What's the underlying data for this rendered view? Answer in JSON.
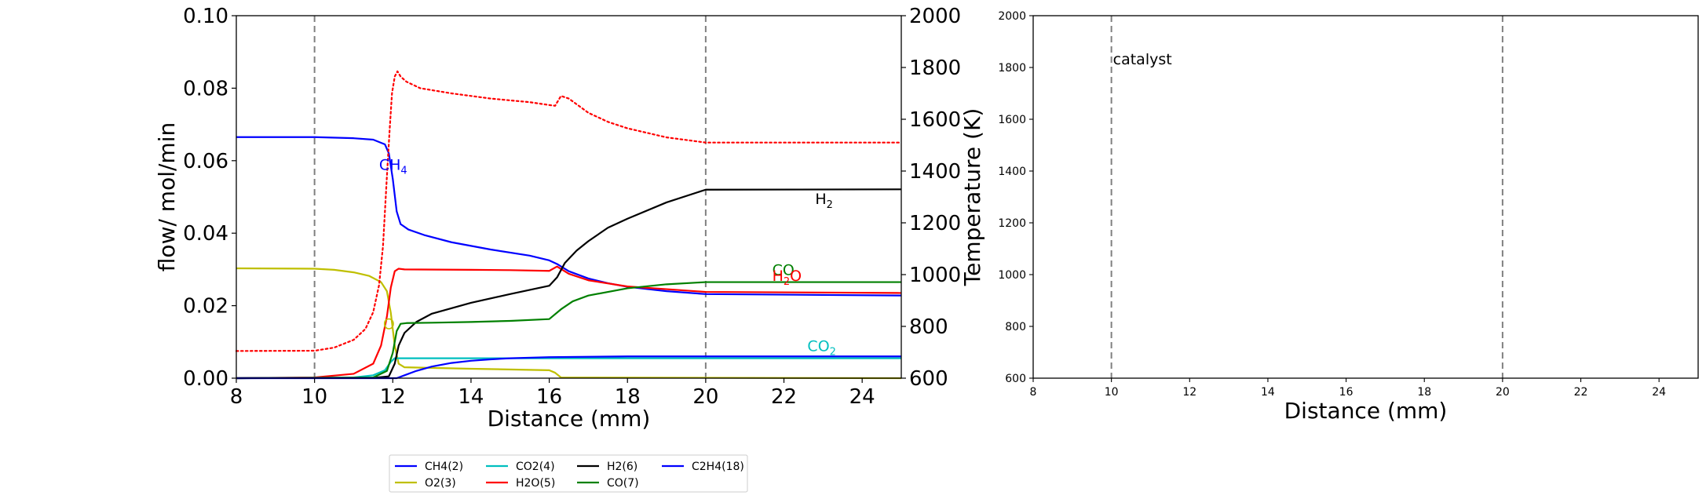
{
  "chart_data": [
    {
      "type": "line",
      "xlabel": "Distance (mm)",
      "ylabel": "flow/ mol/min",
      "ylabel_right": "Temperature (K)",
      "xlim": [
        8,
        25
      ],
      "ylim": [
        0,
        0.1
      ],
      "ylim_right": [
        600,
        2000
      ],
      "xticks": [
        "8",
        "10",
        "12",
        "14",
        "16",
        "18",
        "20",
        "22",
        "24"
      ],
      "yticks": [
        "0.00",
        "0.02",
        "0.04",
        "0.06",
        "0.08",
        "0.10"
      ],
      "yticks_right": [
        "600",
        "800",
        "1000",
        "1200",
        "1400",
        "1600",
        "1800",
        "2000"
      ],
      "vlines": [
        10,
        20
      ],
      "grid": false,
      "legend_placement": "below",
      "series": [
        {
          "name": "CH4(2)",
          "color": "#0000ff",
          "x": [
            8,
            10,
            11,
            11.5,
            11.8,
            11.9,
            12.0,
            12.1,
            12.2,
            12.4,
            12.8,
            13.5,
            14.5,
            15.5,
            16.0,
            16.2,
            16.5,
            17,
            17.5,
            18,
            19,
            20,
            25
          ],
          "y": [
            0.0665,
            0.0665,
            0.0662,
            0.0658,
            0.0645,
            0.062,
            0.055,
            0.046,
            0.0425,
            0.041,
            0.0395,
            0.0375,
            0.0355,
            0.0338,
            0.0325,
            0.0315,
            0.0295,
            0.0275,
            0.0262,
            0.0252,
            0.024,
            0.0232,
            0.0228
          ]
        },
        {
          "name": "O2(3)",
          "color": "#bfbf00",
          "x": [
            8,
            10,
            10.5,
            11,
            11.4,
            11.7,
            11.85,
            11.95,
            12.05,
            12.15,
            12.3,
            14,
            16,
            16.15,
            16.3,
            25
          ],
          "y": [
            0.0303,
            0.0302,
            0.0299,
            0.0292,
            0.0282,
            0.0265,
            0.024,
            0.018,
            0.009,
            0.004,
            0.003,
            0.0026,
            0.0022,
            0.0015,
            0.0002,
            0.0
          ]
        },
        {
          "name": "CO2(4)",
          "color": "#00bfbf",
          "x": [
            8,
            11,
            11.5,
            11.8,
            11.95,
            12.05,
            12.15,
            25
          ],
          "y": [
            0,
            0.0002,
            0.0008,
            0.0022,
            0.0045,
            0.0055,
            0.0055,
            0.0055
          ]
        },
        {
          "name": "H2O(5)",
          "color": "#ff0000",
          "x": [
            8,
            10,
            11,
            11.5,
            11.7,
            11.85,
            11.95,
            12.05,
            12.15,
            12.3,
            14,
            15,
            16,
            16.2,
            16.5,
            17,
            18,
            20,
            25
          ],
          "y": [
            0,
            0.0002,
            0.0012,
            0.004,
            0.009,
            0.017,
            0.025,
            0.0295,
            0.0302,
            0.03,
            0.0299,
            0.0298,
            0.0296,
            0.0308,
            0.0288,
            0.027,
            0.0253,
            0.0238,
            0.0235
          ]
        },
        {
          "name": "H2(6)",
          "color": "#000000",
          "x": [
            8,
            11.5,
            11.9,
            12.05,
            12.15,
            12.3,
            12.6,
            13,
            14,
            15,
            16,
            16.2,
            16.4,
            16.7,
            17,
            17.5,
            18,
            19,
            20,
            25
          ],
          "y": [
            0,
            0.0001,
            0.0005,
            0.004,
            0.009,
            0.0125,
            0.0155,
            0.0178,
            0.0208,
            0.0232,
            0.0255,
            0.0278,
            0.0318,
            0.0352,
            0.0378,
            0.0415,
            0.044,
            0.0485,
            0.052,
            0.0521
          ]
        },
        {
          "name": "CO(7)",
          "color": "#008000",
          "x": [
            8,
            11.5,
            11.85,
            12.0,
            12.1,
            12.2,
            12.35,
            13,
            14,
            15,
            16,
            16.3,
            16.6,
            17,
            18,
            19,
            20,
            25
          ],
          "y": [
            0,
            0.0002,
            0.002,
            0.007,
            0.013,
            0.015,
            0.0152,
            0.0153,
            0.0155,
            0.0158,
            0.0163,
            0.019,
            0.0212,
            0.0228,
            0.0248,
            0.0259,
            0.0265,
            0.0265
          ]
        },
        {
          "name": "C2H4(18)",
          "color": "#0000ff",
          "x": [
            8,
            12.1,
            12.3,
            12.6,
            13,
            13.5,
            14,
            14.5,
            15,
            16,
            18,
            20,
            25
          ],
          "y": [
            0,
            0,
            0.0008,
            0.002,
            0.0032,
            0.0042,
            0.0048,
            0.0052,
            0.0055,
            0.0058,
            0.006,
            0.006,
            0.006
          ]
        },
        {
          "name": "",
          "color": "#ff0000",
          "axis": "right",
          "linestyle": "dotted",
          "x": [
            8,
            10,
            10.5,
            11,
            11.3,
            11.5,
            11.65,
            11.75,
            11.85,
            11.92,
            11.98,
            12.05,
            12.12,
            12.2,
            12.35,
            12.7,
            13.5,
            14.5,
            15.5,
            16.0,
            16.15,
            16.3,
            16.5,
            17,
            17.5,
            18,
            19,
            20,
            25
          ],
          "y": [
            705,
            706,
            718,
            748,
            790,
            855,
            960,
            1110,
            1380,
            1560,
            1700,
            1765,
            1785,
            1765,
            1745,
            1720,
            1700,
            1680,
            1666,
            1655,
            1652,
            1690,
            1680,
            1625,
            1590,
            1565,
            1530,
            1510,
            1510
          ]
        }
      ],
      "annotations": [
        {
          "text": "CH",
          "sub": "4",
          "x": 11.65,
          "y": 0.0575,
          "color": "#0000ff"
        },
        {
          "text": "H",
          "sub": "2",
          "x": 22.8,
          "y": 0.048,
          "color": "#000000"
        },
        {
          "text": "CO",
          "sub": "",
          "x": 21.7,
          "y": 0.0285,
          "color": "#008000"
        },
        {
          "text": "H",
          "sub": "2",
          "after": "O",
          "x": 21.7,
          "y": 0.0268,
          "color": "#ff0000"
        },
        {
          "text": "O",
          "sub": "",
          "x": 11.75,
          "y": 0.0135,
          "color": "#bfbf00"
        },
        {
          "text": "CO",
          "sub": "2",
          "x": 22.6,
          "y": 0.0075,
          "color": "#00bfbf"
        }
      ]
    },
    {
      "type": "line",
      "xlabel": "Distance (mm)",
      "xlim": [
        8,
        25
      ],
      "ylim": [
        600,
        2000
      ],
      "xticks": [
        "8",
        "10",
        "12",
        "14",
        "16",
        "18",
        "20",
        "22",
        "24"
      ],
      "yticks": [
        "600",
        "800",
        "1000",
        "1200",
        "1400",
        "1600",
        "1800",
        "2000"
      ],
      "vlines": [
        10,
        20
      ],
      "annotation": "catalyst",
      "series": []
    }
  ]
}
